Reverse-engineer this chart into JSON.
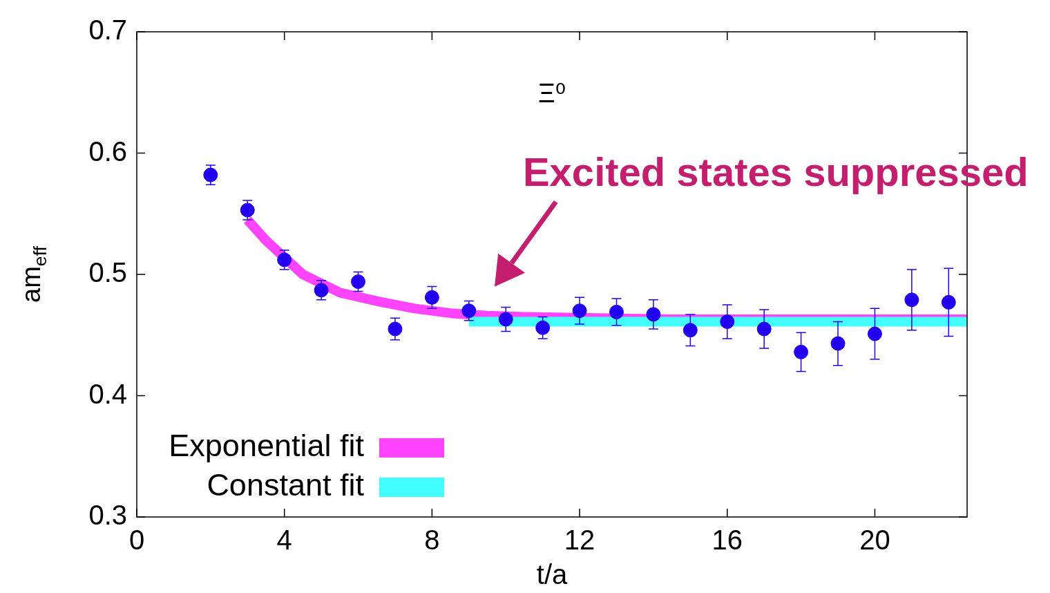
{
  "chart_data": {
    "type": "scatter",
    "xlabel": "t/a",
    "ylabel": "am$_{eff}$",
    "xlim": [
      0,
      22.5
    ],
    "xticks": [
      0,
      4,
      8,
      12,
      16,
      20
    ],
    "ylim": [
      0.3,
      0.7
    ],
    "yticks": [
      0.3,
      0.4,
      0.5,
      0.6,
      0.7
    ],
    "legend": "bottom left",
    "marker": "circle",
    "annotations": [
      "Ξ⁰",
      "Excited states suppressed"
    ],
    "series": [
      {
        "type": "line",
        "name": "Exponential fit",
        "color": "#ff44ff",
        "marker": "none",
        "x": [
          3,
          3.5,
          4.5,
          5.5,
          6.5,
          7.5,
          8.5,
          9.5,
          10.5,
          12.5,
          14.5,
          16.5,
          18.5,
          20.5,
          22.5
        ],
        "values": [
          0.545,
          0.528,
          0.5,
          0.485,
          0.478,
          0.472,
          0.468,
          0.466,
          0.465,
          0.464,
          0.463,
          0.463,
          0.463,
          0.463,
          0.463
        ]
      },
      {
        "type": "line",
        "name": "Constant fit",
        "color": "#44ffff",
        "marker": "none",
        "x": [
          9,
          22.5
        ],
        "values": [
          0.461,
          0.461
        ]
      },
      {
        "color": "#2200ee",
        "x": [
          2,
          3,
          4,
          5,
          6,
          7,
          8,
          9,
          10,
          11,
          12,
          13,
          14,
          15,
          16,
          17,
          18,
          19,
          20,
          21,
          22
        ],
        "values": [
          0.582,
          0.553,
          0.512,
          0.487,
          0.494,
          0.455,
          0.481,
          0.47,
          0.463,
          0.456,
          0.47,
          0.469,
          0.467,
          0.454,
          0.461,
          0.455,
          0.436,
          0.443,
          0.451,
          0.479,
          0.477
        ],
        "errors": [
          0.008,
          0.008,
          0.008,
          0.008,
          0.008,
          0.009,
          0.009,
          0.008,
          0.01,
          0.009,
          0.011,
          0.011,
          0.012,
          0.013,
          0.014,
          0.016,
          0.016,
          0.018,
          0.021,
          0.025,
          0.028
        ]
      }
    ]
  }
}
